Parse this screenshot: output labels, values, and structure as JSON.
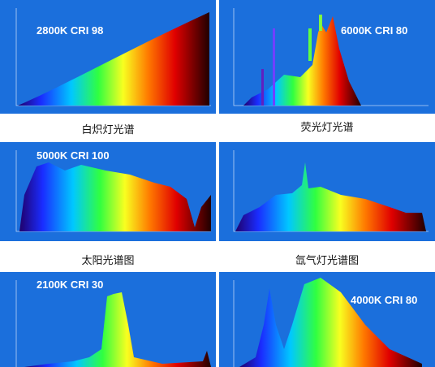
{
  "panels": [
    {
      "label": "2800K CRI 98",
      "caption": "白炽灯光谱"
    },
    {
      "label": "6000K CRI 80",
      "caption": "荧光灯光谱"
    },
    {
      "label": "5000K CRI 100",
      "caption": "太阳光谱图"
    },
    {
      "label": "",
      "caption": "氙气灯光谱图"
    },
    {
      "label": "2100K CRI 30",
      "caption": ""
    },
    {
      "label": "4000K CRI 80",
      "caption": ""
    }
  ]
}
